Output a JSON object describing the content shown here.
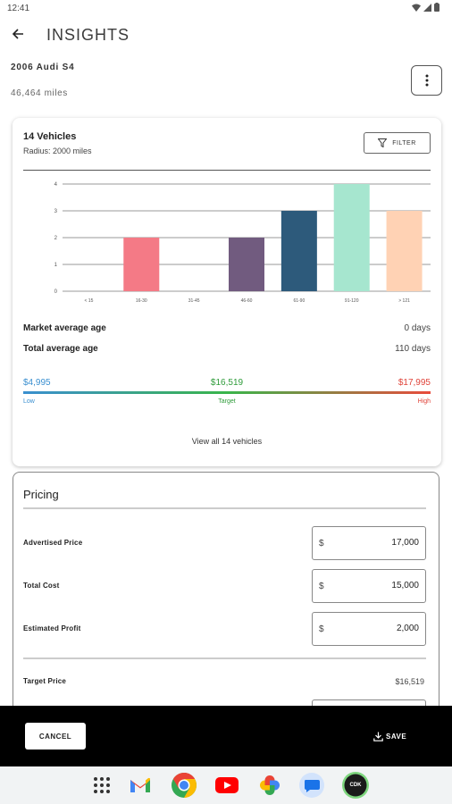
{
  "status_bar": {
    "time": "12:41"
  },
  "header": {
    "title": "INSIGHTS"
  },
  "vehicle": {
    "name": "2006 Audi S4",
    "mileage": "46,464 miles"
  },
  "market": {
    "count_label": "14 Vehicles",
    "radius_label": "Radius: 2000 miles",
    "filter_label": "FILTER",
    "market_avg_age_label": "Market average age",
    "market_avg_age_value": "0 days",
    "total_avg_age_label": "Total average age",
    "total_avg_age_value": "110 days",
    "price_low": "$4,995",
    "price_target": "$16,519",
    "price_high": "$17,995",
    "low_caption": "Low",
    "target_caption": "Target",
    "high_caption": "High",
    "view_all_label": "View all 14 vehicles"
  },
  "chart_data": {
    "type": "bar",
    "categories": [
      "< 15",
      "16-30",
      "31-45",
      "46-60",
      "61-90",
      "91-120",
      "> 121"
    ],
    "values": [
      0,
      2,
      0,
      2,
      3,
      4,
      3
    ],
    "colors": [
      "#f47a86",
      "#f47a86",
      "#f47a86",
      "#715b7f",
      "#2d5a7b",
      "#a6e6cf",
      "#ffd2b4"
    ],
    "yticks": [
      "0",
      "1",
      "2",
      "3",
      "4"
    ],
    "ylim": [
      0,
      4
    ],
    "grid": true
  },
  "pricing": {
    "title": "Pricing",
    "fields": [
      {
        "label": "Advertised Price",
        "prefix": "$",
        "value": "17,000"
      },
      {
        "label": "Total Cost",
        "prefix": "$",
        "value": "15,000"
      },
      {
        "label": "Estimated Profit",
        "prefix": "$",
        "value": "2,000"
      }
    ],
    "target_label": "Target Price",
    "target_value": "$16,519"
  },
  "actions": {
    "cancel_label": "CANCEL",
    "save_label": "SAVE"
  },
  "dock": {
    "icons": [
      "apps-grid-icon",
      "gmail-icon",
      "chrome-icon",
      "youtube-icon",
      "photos-icon",
      "messages-icon",
      "cdk-app-icon"
    ],
    "cdk_label": "CDK"
  }
}
